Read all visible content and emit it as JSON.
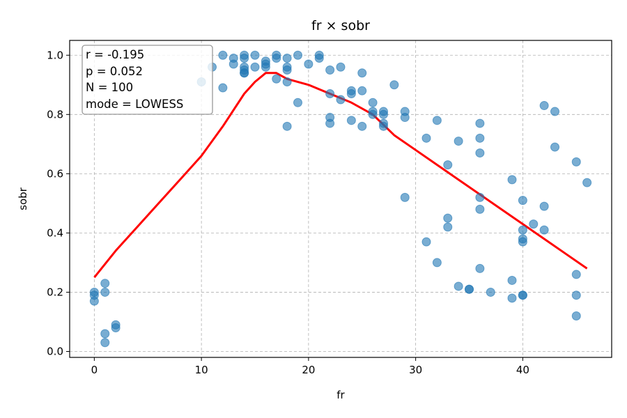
{
  "chart_data": {
    "type": "scatter",
    "title": "fr × sobr",
    "xlabel": "fr",
    "ylabel": "sobr",
    "xlim": [
      -2.3,
      48.3
    ],
    "ylim": [
      -0.02,
      1.05
    ],
    "xticks": [
      0,
      10,
      20,
      30,
      40
    ],
    "yticks": [
      0.0,
      0.2,
      0.4,
      0.6,
      0.8,
      1.0
    ],
    "xtick_labels": [
      "0",
      "10",
      "20",
      "30",
      "40"
    ],
    "ytick_labels": [
      "0.0",
      "0.2",
      "0.4",
      "0.6",
      "0.8",
      "1.0"
    ],
    "grid": true,
    "grid_style": "dashed",
    "point_color": "#1f77b4",
    "line_color": "#ff0000",
    "stats_box": {
      "lines": [
        "r = -0.195",
        "p = 0.052",
        "N = 100",
        "mode = LOWESS"
      ],
      "placement": "top-left"
    },
    "series": [
      {
        "kind": "scatter",
        "x": [
          0,
          0,
          0,
          1,
          1,
          1,
          1,
          2,
          2,
          10,
          11,
          12,
          12,
          13,
          13,
          14,
          14,
          14,
          14,
          14,
          14,
          15,
          15,
          16,
          16,
          16,
          17,
          17,
          17,
          18,
          18,
          18,
          18,
          18,
          19,
          19,
          20,
          21,
          21,
          22,
          22,
          22,
          22,
          23,
          23,
          24,
          24,
          24,
          25,
          25,
          25,
          26,
          26,
          26,
          27,
          27,
          27,
          27,
          28,
          29,
          29,
          29,
          31,
          31,
          32,
          32,
          33,
          33,
          33,
          34,
          34,
          35,
          35,
          36,
          36,
          36,
          36,
          36,
          36,
          37,
          39,
          39,
          39,
          40,
          40,
          40,
          40,
          40,
          40,
          41,
          42,
          42,
          42,
          43,
          43,
          45,
          45,
          45,
          45,
          46
        ],
        "y": [
          0.2,
          0.19,
          0.17,
          0.23,
          0.2,
          0.06,
          0.03,
          0.09,
          0.08,
          0.91,
          0.96,
          1.0,
          0.89,
          0.99,
          0.97,
          1.0,
          0.99,
          0.96,
          0.95,
          0.94,
          0.94,
          1.0,
          0.96,
          0.98,
          0.97,
          0.96,
          1.0,
          0.99,
          0.92,
          0.99,
          0.96,
          0.95,
          0.91,
          0.76,
          1.0,
          0.84,
          0.97,
          1.0,
          0.99,
          0.95,
          0.87,
          0.79,
          0.77,
          0.96,
          0.85,
          0.88,
          0.87,
          0.78,
          0.94,
          0.88,
          0.76,
          0.84,
          0.81,
          0.8,
          0.81,
          0.8,
          0.77,
          0.76,
          0.9,
          0.81,
          0.79,
          0.52,
          0.72,
          0.37,
          0.78,
          0.3,
          0.63,
          0.45,
          0.42,
          0.71,
          0.22,
          0.21,
          0.21,
          0.77,
          0.72,
          0.67,
          0.52,
          0.48,
          0.28,
          0.2,
          0.58,
          0.24,
          0.18,
          0.51,
          0.41,
          0.38,
          0.37,
          0.19,
          0.19,
          0.43,
          0.83,
          0.49,
          0.41,
          0.81,
          0.69,
          0.64,
          0.26,
          0.19,
          0.12,
          0.57
        ]
      },
      {
        "kind": "line",
        "x": [
          0,
          2,
          4,
          6,
          8,
          10,
          12,
          14,
          15,
          16,
          17,
          18,
          20,
          22,
          24,
          26,
          28,
          30,
          32,
          34,
          36,
          38,
          40,
          42,
          44,
          46
        ],
        "y": [
          0.25,
          0.34,
          0.42,
          0.5,
          0.58,
          0.66,
          0.76,
          0.87,
          0.91,
          0.94,
          0.94,
          0.92,
          0.9,
          0.87,
          0.84,
          0.8,
          0.73,
          0.68,
          0.63,
          0.58,
          0.53,
          0.48,
          0.43,
          0.38,
          0.33,
          0.28
        ]
      }
    ]
  }
}
